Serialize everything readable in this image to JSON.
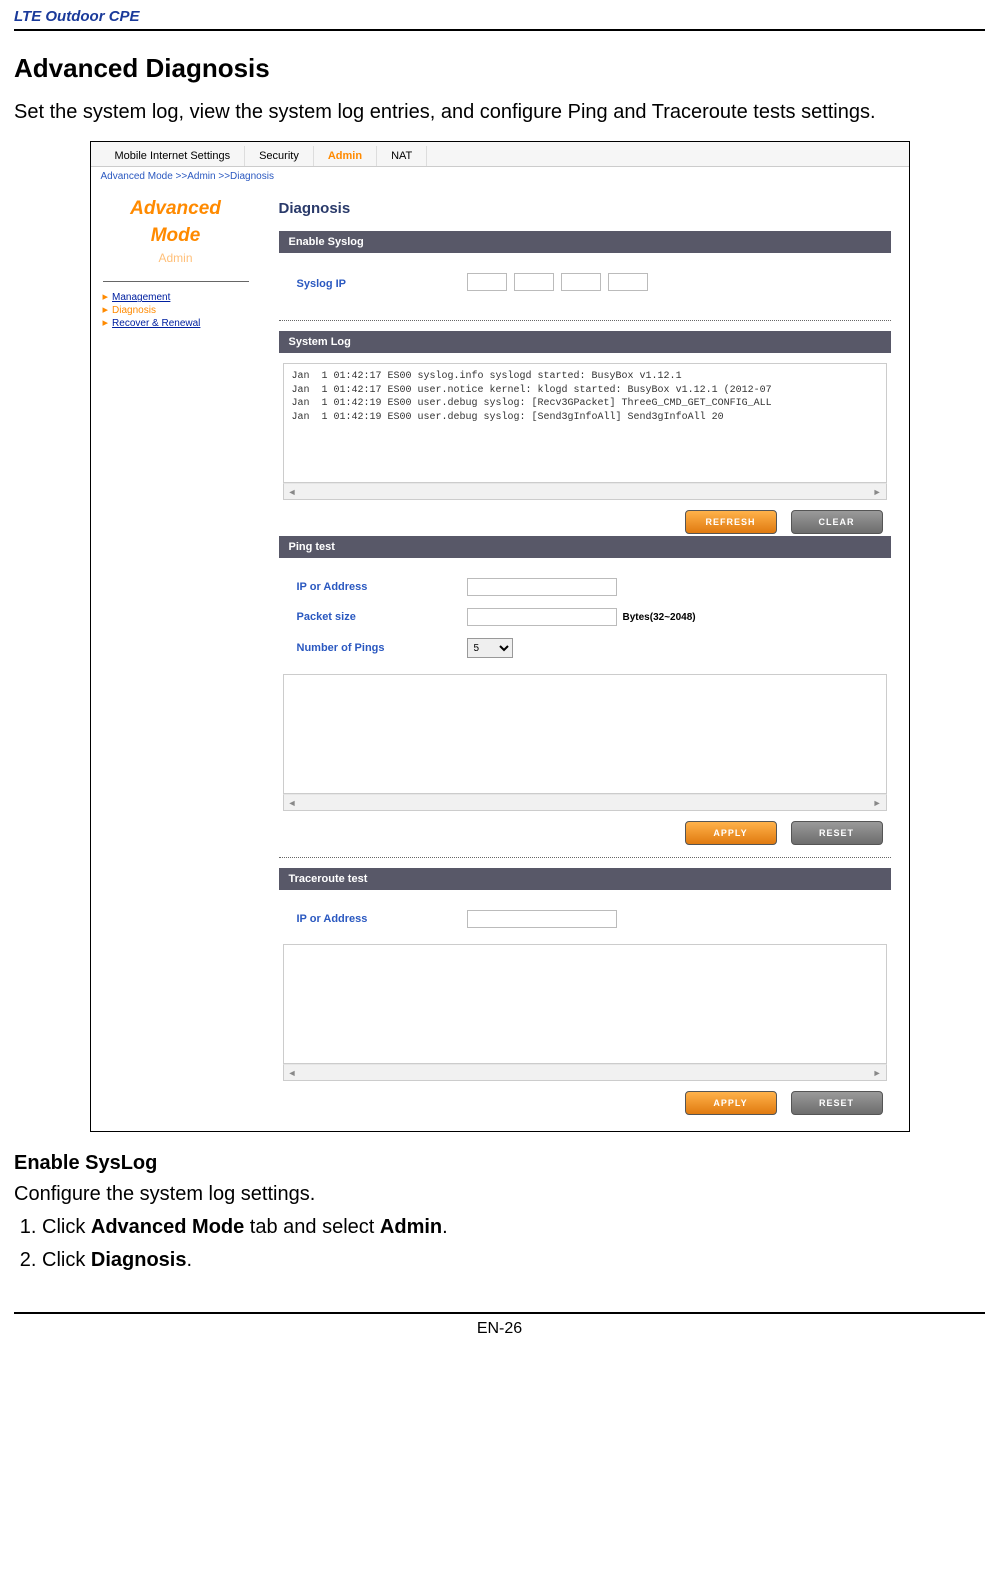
{
  "doc": {
    "header": "LTE Outdoor CPE",
    "section_title": "Advanced Diagnosis",
    "intro": "Set the system log, view the system log entries, and configure Ping and Traceroute tests settings.",
    "sub_heading": "Enable SysLog",
    "sub_text": "Configure the system log settings.",
    "steps": [
      {
        "pre": "Click ",
        "b1": "Advanced Mode",
        "mid": " tab and select ",
        "b2": "Admin",
        "post": "."
      },
      {
        "pre": "Click ",
        "b1": "Diagnosis",
        "mid": "",
        "b2": "",
        "post": "."
      }
    ],
    "page_num": "EN-26"
  },
  "tabs": {
    "t0": "Mobile Internet Settings",
    "t1": "Security",
    "t2": "Admin",
    "t3": "NAT"
  },
  "breadcrumb": "Advanced Mode >>Admin >>Diagnosis",
  "sidebar": {
    "title_l1": "Advanced",
    "title_l2": "Mode",
    "subtitle": "Admin",
    "items": {
      "i0": "Management",
      "i1": "Diagnosis",
      "i2": "Recover & Renewal"
    }
  },
  "page": {
    "title": "Diagnosis",
    "bar_enable": "Enable Syslog",
    "syslog_ip_label": "Syslog IP",
    "bar_syslog": "System Log",
    "log_text": "Jan  1 01:42:17 ES00 syslog.info syslogd started: BusyBox v1.12.1\nJan  1 01:42:17 ES00 user.notice kernel: klogd started: BusyBox v1.12.1 (2012-07\nJan  1 01:42:19 ES00 user.debug syslog: [Recv3GPacket] ThreeG_CMD_GET_CONFIG_ALL\nJan  1 01:42:19 ES00 user.debug syslog: [Send3gInfoAll] Send3gInfoAll 20",
    "btn_refresh": "REFRESH",
    "btn_clear": "CLEAR",
    "bar_ping": "Ping test",
    "ping_ip_label": "IP or Address",
    "ping_size_label": "Packet size",
    "ping_size_suffix": "Bytes(32~2048)",
    "ping_count_label": "Number of Pings",
    "ping_count_value": "5",
    "btn_apply": "APPLY",
    "btn_reset": "RESET",
    "bar_trace": "Traceroute test",
    "trace_ip_label": "IP or Address",
    "hscroll_mid": "⏵⏸"
  }
}
